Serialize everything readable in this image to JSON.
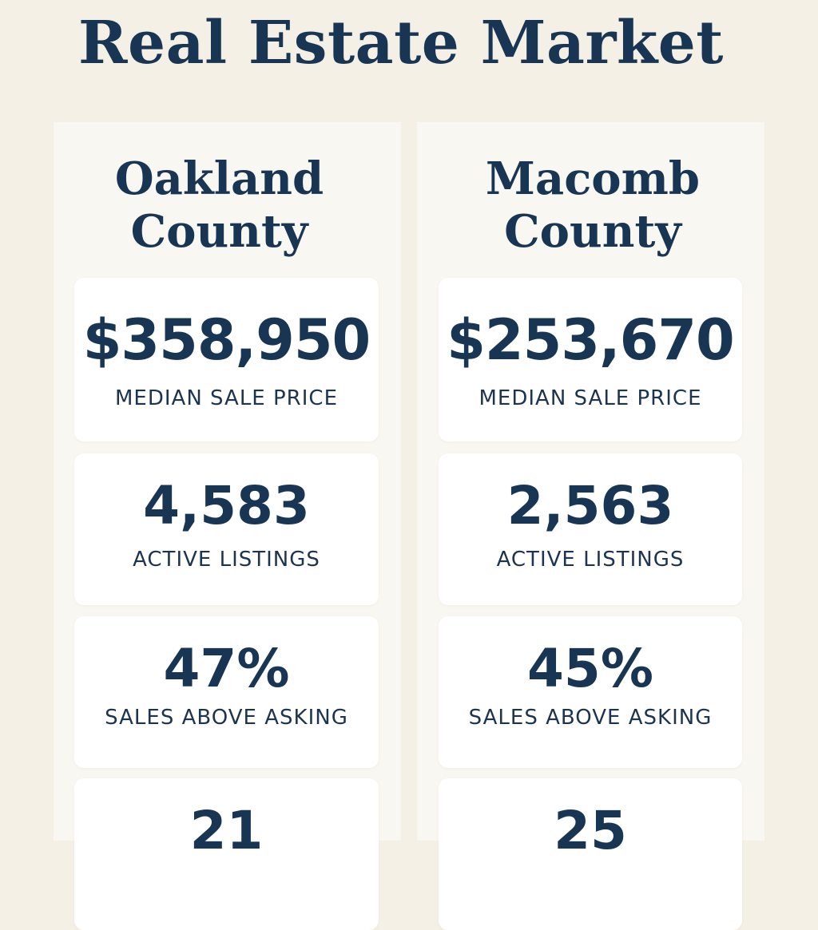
{
  "title": "Real Estate Market",
  "counties": [
    {
      "name_line1": "Oakland",
      "name_line2": "County",
      "stats": [
        {
          "value": "$358,950",
          "label": "MEDIAN SALE PRICE"
        },
        {
          "value": "4,583",
          "label": "ACTIVE LISTINGS"
        },
        {
          "value": "47%",
          "label": "SALES ABOVE ASKING"
        },
        {
          "value": "21"
        }
      ]
    },
    {
      "name_line1": "Macomb",
      "name_line2": "County",
      "stats": [
        {
          "value": "$253,670",
          "label": "MEDIAN SALE PRICE"
        },
        {
          "value": "2,563",
          "label": "ACTIVE LISTINGS"
        },
        {
          "value": "45%",
          "label": "SALES ABOVE ASKING"
        },
        {
          "value": "25"
        }
      ]
    }
  ]
}
